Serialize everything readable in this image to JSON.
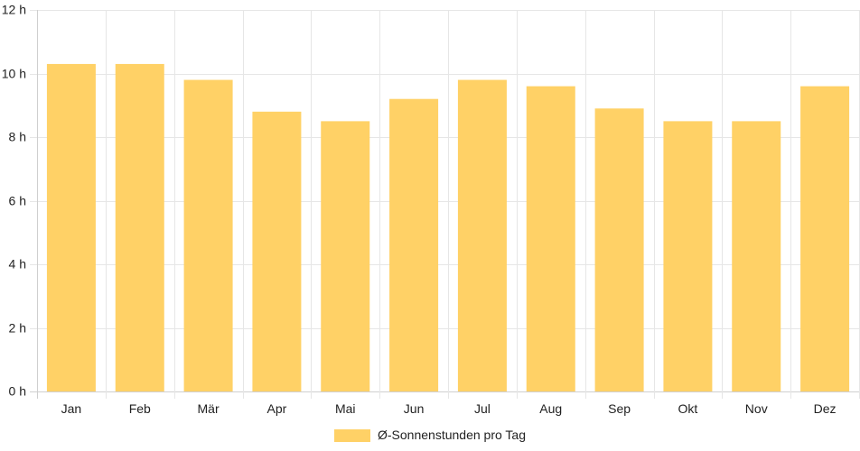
{
  "chart_data": {
    "type": "bar",
    "categories": [
      "Jan",
      "Feb",
      "Mär",
      "Apr",
      "Mai",
      "Jun",
      "Jul",
      "Aug",
      "Sep",
      "Okt",
      "Nov",
      "Dez"
    ],
    "series": [
      {
        "name": "Ø-Sonnenstunden pro Tag",
        "values": [
          10.3,
          10.3,
          9.8,
          8.8,
          8.5,
          9.2,
          9.8,
          9.6,
          8.9,
          8.5,
          8.5,
          9.6
        ],
        "color": "#FFD166"
      }
    ],
    "ylim": [
      0,
      12
    ],
    "yticks": [
      "0 h",
      "2 h",
      "4 h",
      "6 h",
      "8 h",
      "10 h",
      "12 h"
    ],
    "grid": true,
    "legend_position": "bottom"
  }
}
